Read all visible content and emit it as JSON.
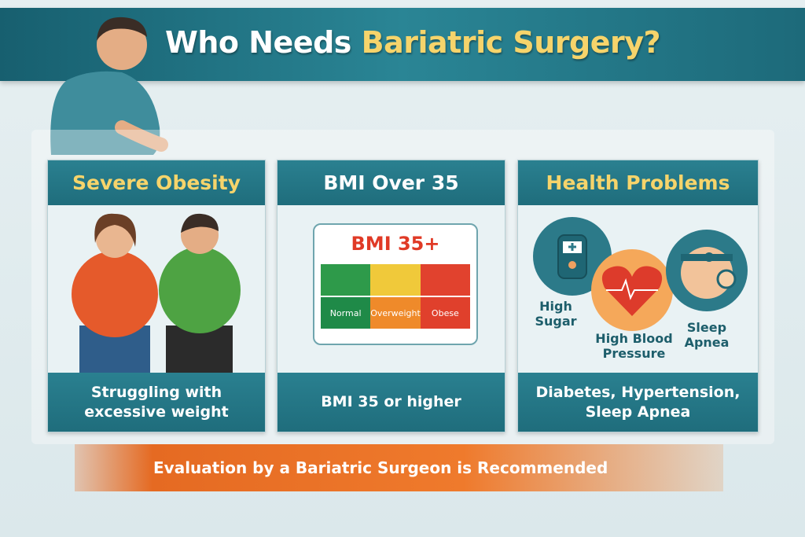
{
  "title": {
    "prefix": "Who Needs ",
    "highlight": "Bariatric Surgery?"
  },
  "cards": [
    {
      "heading": "Severe Obesity",
      "caption": "Struggling with excessive weight"
    },
    {
      "heading": "BMI Over 35",
      "caption": "BMI 35 or higher",
      "scale": {
        "title": "BMI 35+",
        "categories": [
          "Normal",
          "Overweight",
          "Obese"
        ],
        "colors": [
          "#2e9a4a",
          "#f0c93a",
          "#e1422e"
        ]
      }
    },
    {
      "heading": "Health Problems",
      "caption": "Diabetes, Hypertension, Sleep Apnea",
      "icons": [
        {
          "icon": "glucose-meter-icon",
          "label": "High Sugar"
        },
        {
          "icon": "heart-pulse-icon",
          "label": "High Blood Pressure"
        },
        {
          "icon": "sleep-apnea-mask-icon",
          "label": "Sleep Apnea"
        }
      ]
    }
  ],
  "recommendation": "Evaluation by a Bariatric Surgeon is Recommended",
  "colors": {
    "teal": "#1f6d7c",
    "yellow": "#f6d46b",
    "orange": "#e56a22"
  }
}
